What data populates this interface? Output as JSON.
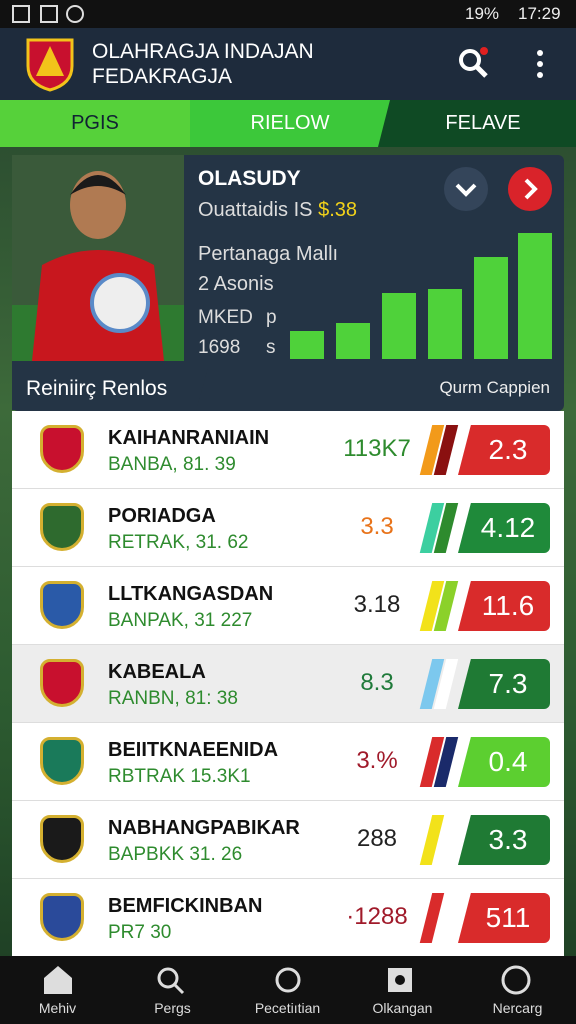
{
  "status": {
    "battery": "19%",
    "time": "17:29"
  },
  "header": {
    "title_line1": "OLAHRAGJA INDAJAN",
    "title_line2": "FEDAKRAGJA"
  },
  "tabs": [
    "PGIS",
    "RIELOW",
    "FELAVE"
  ],
  "player": {
    "name": "OLASUDY",
    "line1": "Ouattaidis IS",
    "price": "$.38",
    "line2": "Pertanaga Mallı",
    "line3": "2 Asonis",
    "stat_label": "MKED",
    "stat_label_unit": "p",
    "stat_value": "1698",
    "stat_value_unit": "s"
  },
  "section": {
    "title": "Reiniirç Renlos",
    "right": "Qurm Cappien"
  },
  "rows": [
    {
      "name": "KAIHANRANIAIN",
      "sub": "BANBA, 81. 39",
      "stat": "113K7",
      "stat_color": "#2e8b2e",
      "score": "2.3",
      "score_color": "#d92b2b",
      "stripes": [
        "#f29a1a",
        "#8a1010"
      ]
    },
    {
      "name": "PORIADGA",
      "sub": "RETRAK, 31. 62",
      "stat": "3.3",
      "stat_color": "#e8731a",
      "score": "4.12",
      "score_color": "#1f8a3a",
      "stripes": [
        "#3ccfa0",
        "#2e8b2e"
      ]
    },
    {
      "name": "LLTKANGASDAN",
      "sub": "BANPAK, 31 227",
      "stat": "3.18",
      "stat_color": "#222222",
      "score": "11.6",
      "score_color": "#d92b2b",
      "stripes": [
        "#f2e21a",
        "#8bd12a"
      ]
    },
    {
      "name": "KABEALA",
      "sub": "RANBN, 81: 38",
      "stat": "8.3",
      "stat_color": "#1f7a3a",
      "score": "7.3",
      "score_color": "#1f7a34",
      "stripes": [
        "#7cc8ee",
        "#ffffff"
      ]
    },
    {
      "name": "BEIITKNAEENIDA",
      "sub": "RBTRAK 15.3K1",
      "stat": "3.%",
      "stat_color": "#a01a2a",
      "score": "0.4",
      "score_color": "#5ccf30",
      "stripes": [
        "#d92b2b",
        "#1a2a6a"
      ]
    },
    {
      "name": "NABHANGPABIKAR",
      "sub": "BAPBKK 31. 26",
      "stat": "288",
      "stat_color": "#222222",
      "score": "3.3",
      "score_color": "#1f7a34",
      "stripes": [
        "#f2e21a",
        "#ffffff"
      ]
    },
    {
      "name": "BEMFICKINBAN",
      "sub": "PR7 30",
      "stat": "·1288",
      "stat_color": "#a01a2a",
      "score": "511",
      "score_color": "#d92b2b",
      "stripes": [
        "#d92b2b",
        "#ffffff"
      ]
    }
  ],
  "nav": [
    "Mehiv",
    "Pergs",
    "Pecetiıtian",
    "Olkangan",
    "Nercarg"
  ]
}
